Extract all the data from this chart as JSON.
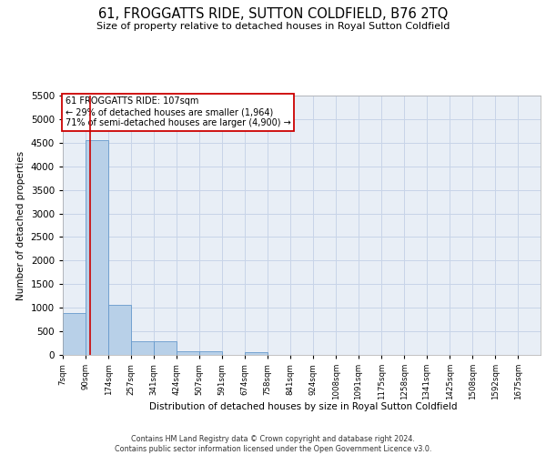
{
  "title": "61, FROGGATTS RIDE, SUTTON COLDFIELD, B76 2TQ",
  "subtitle": "Size of property relative to detached houses in Royal Sutton Coldfield",
  "xlabel": "Distribution of detached houses by size in Royal Sutton Coldfield",
  "ylabel": "Number of detached properties",
  "footer_line1": "Contains HM Land Registry data © Crown copyright and database right 2024.",
  "footer_line2": "Contains public sector information licensed under the Open Government Licence v3.0.",
  "annotation_line1": "61 FROGGATTS RIDE: 107sqm",
  "annotation_line2": "← 29% of detached houses are smaller (1,964)",
  "annotation_line3": "71% of semi-detached houses are larger (4,900) →",
  "property_size_sqm": 107,
  "bar_color": "#b8d0e8",
  "bar_edge_color": "#6699cc",
  "property_line_color": "#cc0000",
  "annotation_box_edge_color": "#cc0000",
  "bin_labels": [
    "7sqm",
    "90sqm",
    "174sqm",
    "257sqm",
    "341sqm",
    "424sqm",
    "507sqm",
    "591sqm",
    "674sqm",
    "758sqm",
    "841sqm",
    "924sqm",
    "1008sqm",
    "1091sqm",
    "1175sqm",
    "1258sqm",
    "1341sqm",
    "1425sqm",
    "1508sqm",
    "1592sqm",
    "1675sqm"
  ],
  "bin_edges": [
    7,
    90,
    174,
    257,
    341,
    424,
    507,
    591,
    674,
    758,
    841,
    924,
    1008,
    1091,
    1175,
    1258,
    1341,
    1425,
    1508,
    1592,
    1675
  ],
  "bar_heights": [
    880,
    4560,
    1060,
    290,
    290,
    80,
    80,
    0,
    60,
    0,
    0,
    0,
    0,
    0,
    0,
    0,
    0,
    0,
    0,
    0
  ],
  "ylim": [
    0,
    5500
  ],
  "yticks": [
    0,
    500,
    1000,
    1500,
    2000,
    2500,
    3000,
    3500,
    4000,
    4500,
    5000,
    5500
  ],
  "background_color": "#ffffff",
  "grid_color": "#c8d4e8",
  "plot_bg_color": "#e8eef6"
}
